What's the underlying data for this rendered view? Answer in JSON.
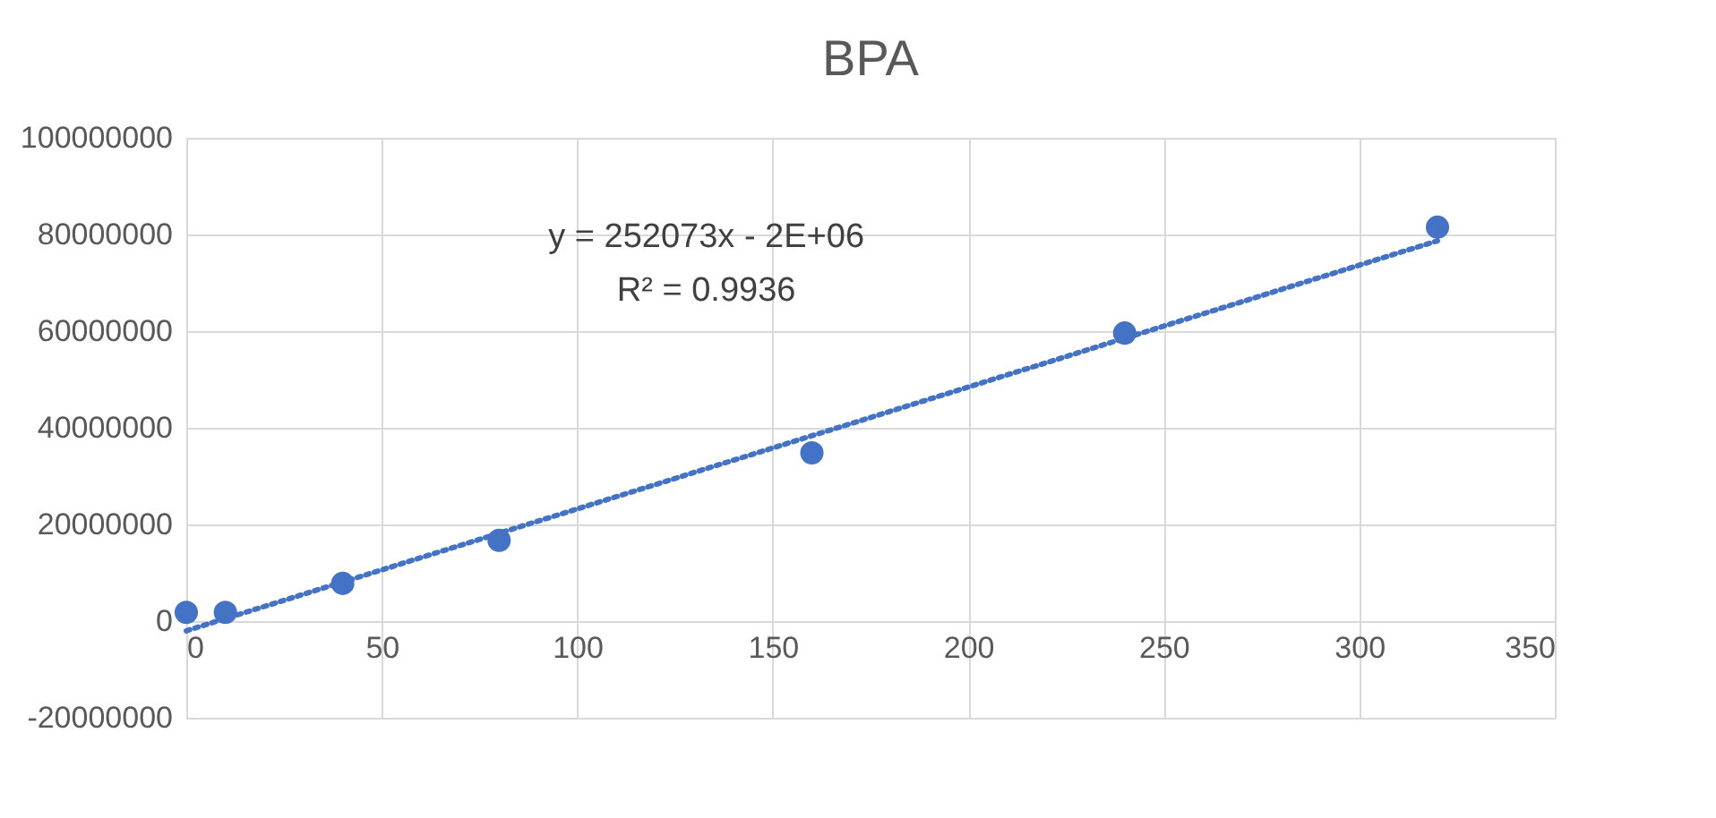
{
  "chart_data": {
    "type": "scatter",
    "title": "BPA",
    "x": [
      0,
      10,
      40,
      80,
      160,
      240,
      320
    ],
    "series": [
      {
        "color": "#4472c4",
        "marker": "circle",
        "values": [
          1800000,
          1800000,
          7800000,
          16700000,
          34800000,
          59600000,
          81500000
        ]
      },
      {
        "type": "line",
        "color": "#4472c4",
        "line_style": "dotted",
        "x": [
          0,
          320
        ],
        "values": [
          -2000000,
          78700000
        ]
      }
    ],
    "annotations": [
      "y = 252073x - 2E+06",
      "R² = 0.9936"
    ],
    "xlim": [
      0,
      350
    ],
    "xticks": [
      0,
      50,
      100,
      150,
      200,
      250,
      300,
      350
    ],
    "ylim": [
      -20000000,
      100000000
    ],
    "yticks": [
      -20000000,
      0,
      20000000,
      40000000,
      60000000,
      80000000,
      100000000
    ],
    "grid": true
  }
}
